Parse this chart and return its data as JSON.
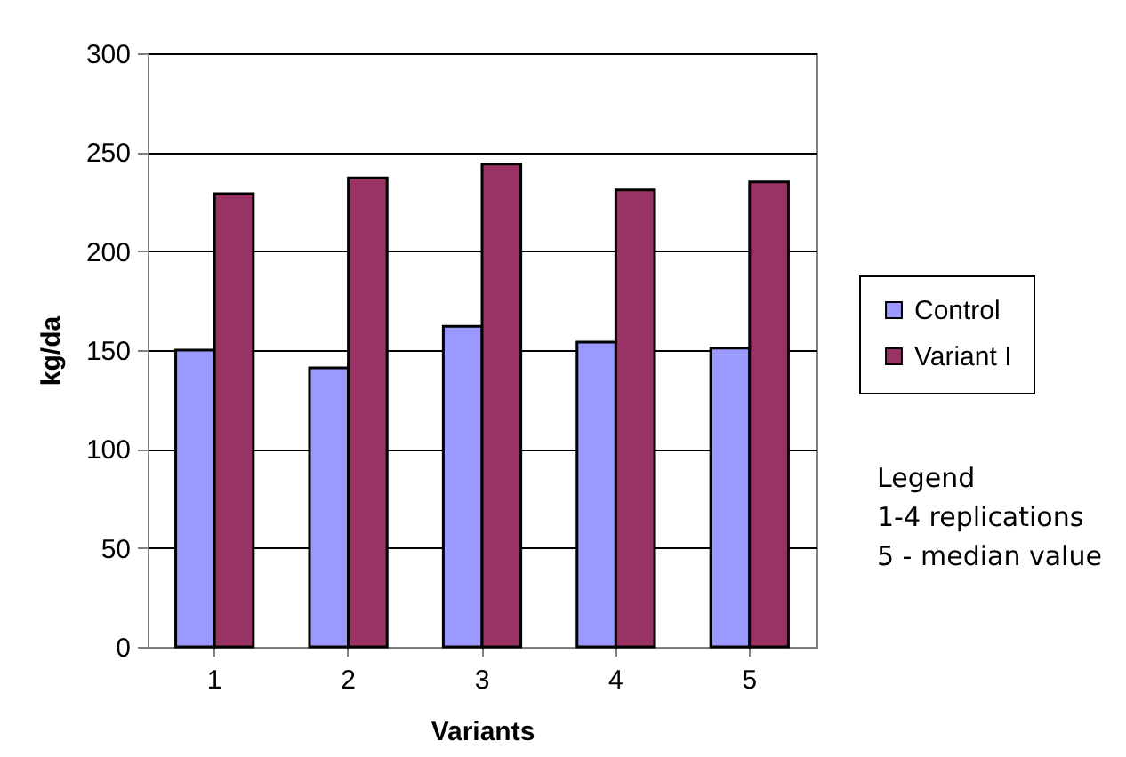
{
  "chart_data": {
    "type": "bar",
    "xlabel": "Variants",
    "ylabel": "kg/da",
    "categories": [
      "1",
      "2",
      "3",
      "4",
      "5"
    ],
    "series": [
      {
        "name": "Control",
        "color": "#9999ff",
        "values": [
          150,
          141,
          162,
          154,
          151
        ]
      },
      {
        "name": "Variant I",
        "color": "#993366",
        "values": [
          229,
          237,
          244,
          231,
          235
        ]
      }
    ],
    "ylim": [
      0,
      300
    ],
    "yticks": [
      0,
      50,
      100,
      150,
      200,
      250,
      300
    ],
    "grid": "y",
    "legend": "right",
    "annotations": [
      "Legend",
      "1-4 replications",
      "5 - median value"
    ]
  }
}
